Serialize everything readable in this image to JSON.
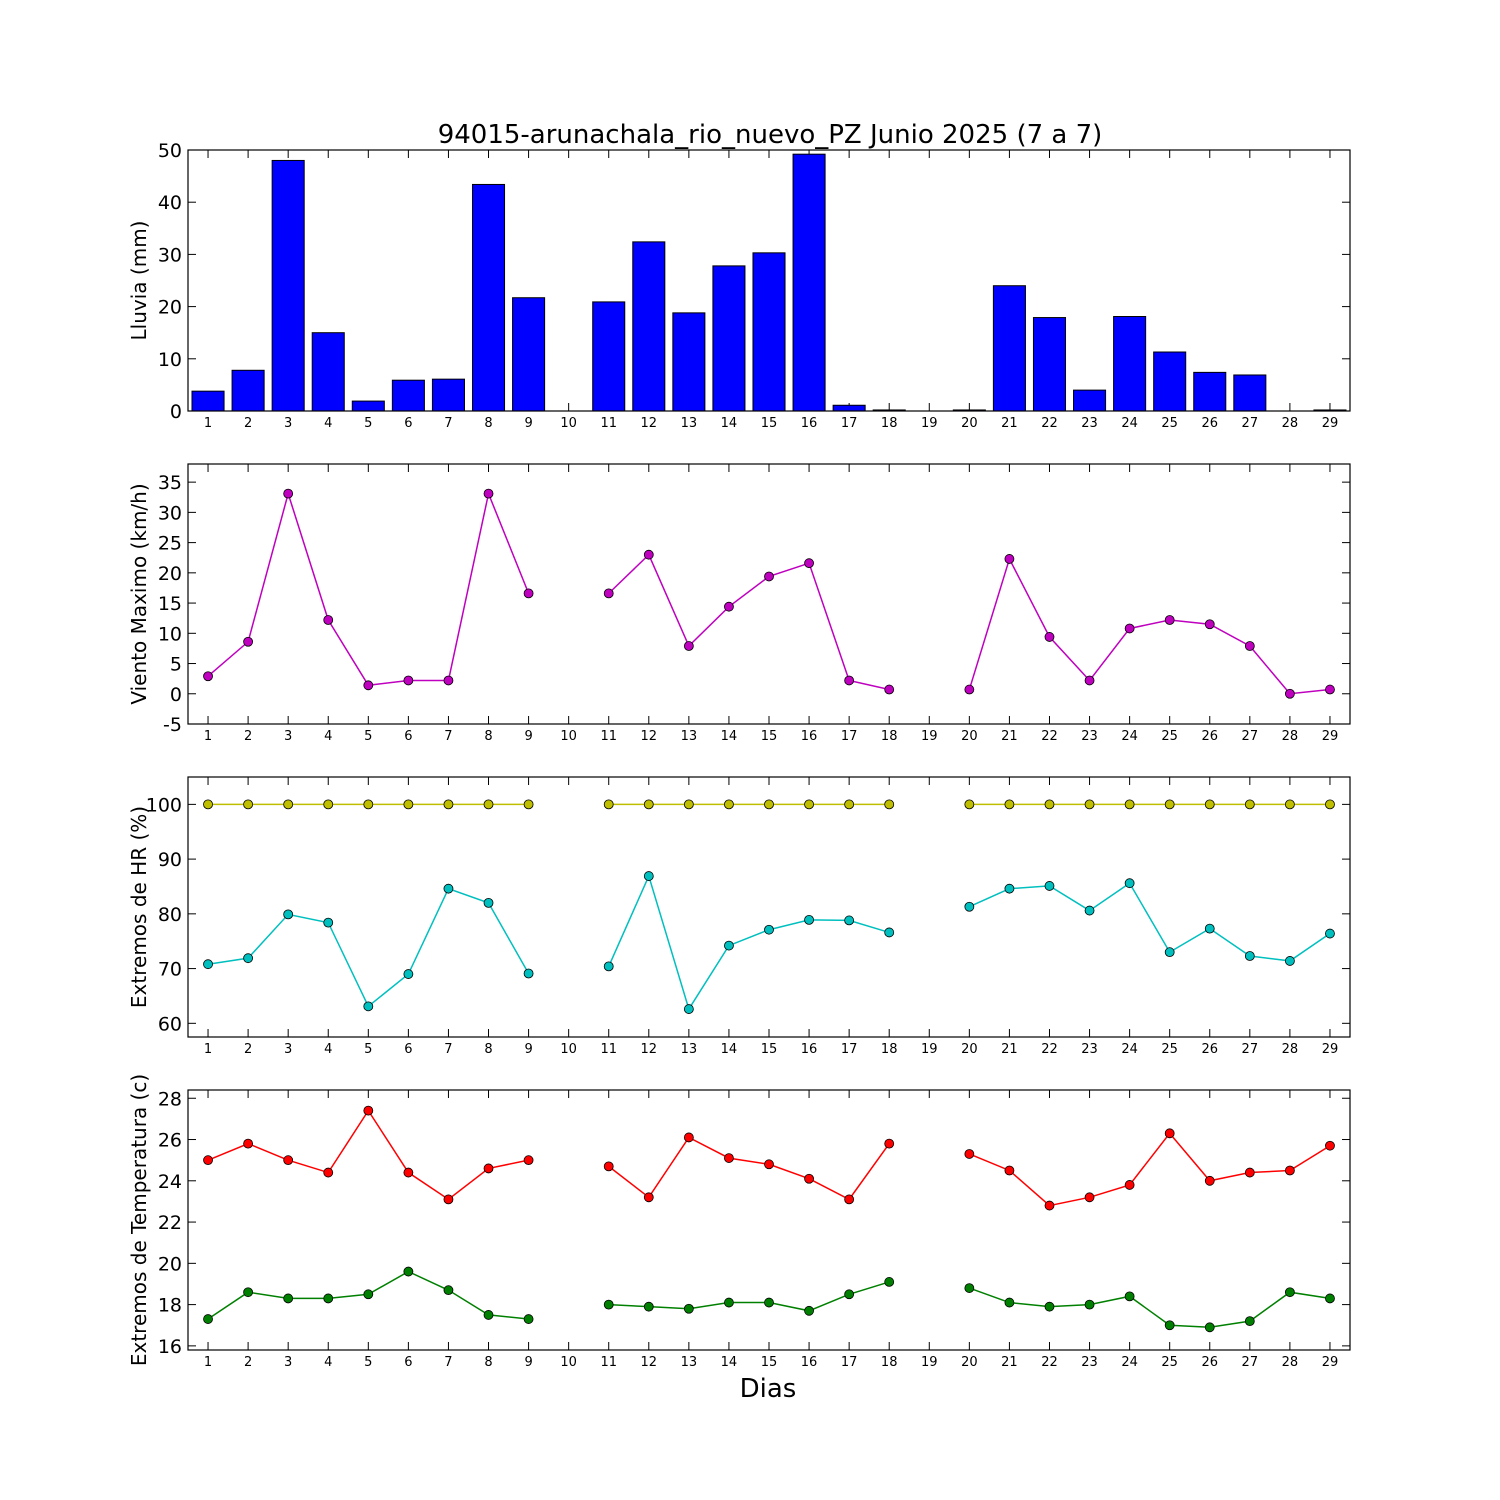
{
  "title": "94015-arunachala_rio_nuevo_PZ Junio 2025  (7 a 7)",
  "xlabel": "Dias",
  "colors": {
    "rain_bar": "#0000ff",
    "wind": "#bf00bf",
    "rh_max": "#bfbf00",
    "rh_min": "#00bfbf",
    "temp_max": "#ff0000",
    "temp_min": "#008000"
  },
  "chart_data": [
    {
      "type": "bar",
      "name": "rain",
      "ylabel": "Lluvia (mm)",
      "ylim": [
        0,
        50
      ],
      "yticks": [
        0,
        10,
        20,
        30,
        40,
        50
      ],
      "categories": [
        1,
        2,
        3,
        4,
        5,
        6,
        7,
        8,
        9,
        10,
        11,
        12,
        13,
        14,
        15,
        16,
        17,
        18,
        19,
        20,
        21,
        22,
        23,
        24,
        25,
        26,
        27,
        28,
        29
      ],
      "values": [
        3.8,
        7.8,
        48.0,
        15.0,
        1.9,
        5.9,
        6.1,
        43.4,
        21.7,
        0,
        20.9,
        32.4,
        18.8,
        27.8,
        30.3,
        49.2,
        1.1,
        0.2,
        0,
        0.2,
        24.0,
        17.9,
        4.0,
        18.1,
        11.3,
        7.4,
        6.9,
        0,
        0.2
      ]
    },
    {
      "type": "line",
      "name": "wind",
      "ylabel": "Viento Maximo (km/h)",
      "ylim": [
        -5,
        38
      ],
      "yticks": [
        -5,
        0,
        5,
        10,
        15,
        20,
        25,
        30,
        35
      ],
      "x": [
        1,
        2,
        3,
        4,
        5,
        6,
        7,
        8,
        9,
        10,
        11,
        12,
        13,
        14,
        15,
        16,
        17,
        18,
        19,
        20,
        21,
        22,
        23,
        24,
        25,
        26,
        27,
        28,
        29
      ],
      "series": [
        {
          "name": "Viento Maximo",
          "values": [
            2.9,
            8.6,
            33.1,
            12.2,
            1.4,
            2.2,
            2.2,
            33.1,
            16.6,
            null,
            16.6,
            23.0,
            7.9,
            14.4,
            19.4,
            21.6,
            2.2,
            0.7,
            null,
            0.7,
            22.3,
            9.4,
            2.2,
            10.8,
            12.2,
            11.5,
            7.9,
            0.0,
            0.7
          ]
        }
      ]
    },
    {
      "type": "line",
      "name": "humidity",
      "ylabel": "Extremos de HR (%)",
      "ylim": [
        57.5,
        105
      ],
      "yticks": [
        60,
        70,
        80,
        90,
        100
      ],
      "x": [
        1,
        2,
        3,
        4,
        5,
        6,
        7,
        8,
        9,
        10,
        11,
        12,
        13,
        14,
        15,
        16,
        17,
        18,
        19,
        20,
        21,
        22,
        23,
        24,
        25,
        26,
        27,
        28,
        29
      ],
      "series": [
        {
          "name": "HR max",
          "values": [
            100,
            100,
            100,
            100,
            100,
            100,
            100,
            100,
            100,
            null,
            100,
            100,
            100,
            100,
            100,
            100,
            100,
            100,
            null,
            100,
            100,
            100,
            100,
            100,
            100,
            100,
            100,
            100,
            100
          ]
        },
        {
          "name": "HR min",
          "values": [
            70.8,
            71.9,
            79.9,
            78.4,
            63.1,
            69.0,
            84.6,
            82.0,
            69.1,
            null,
            70.4,
            86.9,
            62.6,
            74.2,
            77.1,
            78.9,
            78.8,
            76.6,
            null,
            81.3,
            84.6,
            85.1,
            80.6,
            85.6,
            73.0,
            77.3,
            72.3,
            71.4,
            76.4
          ]
        }
      ]
    },
    {
      "type": "line",
      "name": "temperature",
      "ylabel": "Extremos de Temperatura (c)",
      "ylim": [
        15.8,
        28.4
      ],
      "yticks": [
        16,
        18,
        20,
        22,
        24,
        26,
        28
      ],
      "x": [
        1,
        2,
        3,
        4,
        5,
        6,
        7,
        8,
        9,
        10,
        11,
        12,
        13,
        14,
        15,
        16,
        17,
        18,
        19,
        20,
        21,
        22,
        23,
        24,
        25,
        26,
        27,
        28,
        29
      ],
      "series": [
        {
          "name": "Temp max",
          "values": [
            25.0,
            25.8,
            25.0,
            24.4,
            27.4,
            24.4,
            23.1,
            24.6,
            25.0,
            null,
            24.7,
            23.2,
            26.1,
            25.1,
            24.8,
            24.1,
            23.1,
            25.8,
            null,
            25.3,
            24.5,
            22.8,
            23.2,
            23.8,
            26.3,
            24.0,
            24.4,
            24.5,
            25.7
          ]
        },
        {
          "name": "Temp min",
          "values": [
            17.3,
            18.6,
            18.3,
            18.3,
            18.5,
            19.6,
            18.7,
            17.5,
            17.3,
            null,
            18.0,
            17.9,
            17.8,
            18.1,
            18.1,
            17.7,
            18.5,
            19.1,
            null,
            18.8,
            18.1,
            17.9,
            18.0,
            18.4,
            17.0,
            16.9,
            17.2,
            18.6,
            18.3
          ]
        }
      ]
    }
  ]
}
